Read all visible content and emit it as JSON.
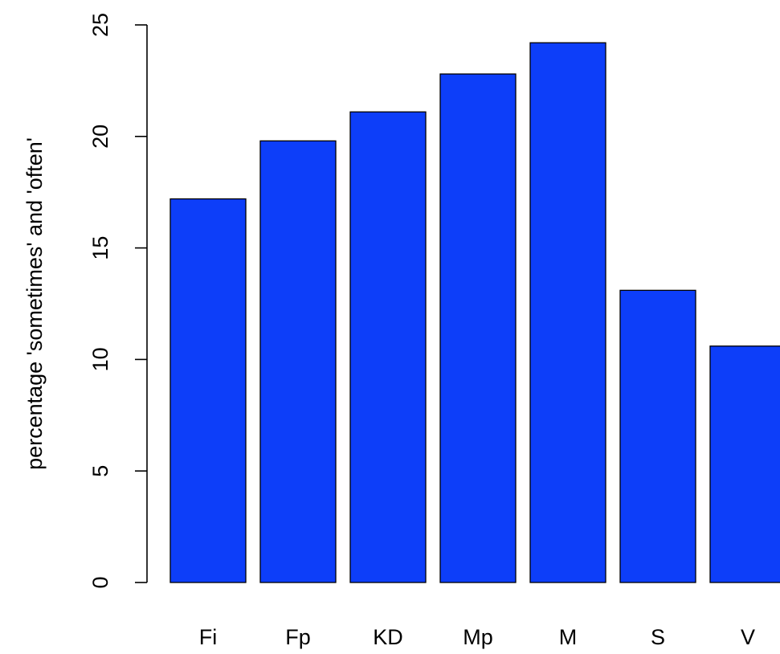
{
  "chart_data": {
    "type": "bar",
    "categories": [
      "Fi",
      "Fp",
      "KD",
      "Mp",
      "M",
      "S",
      "V"
    ],
    "values": [
      17.2,
      19.8,
      21.1,
      22.8,
      24.2,
      13.1,
      10.6
    ],
    "title": "",
    "xlabel": "",
    "ylabel": "percentage 'sometimes' and 'often'",
    "ylim": [
      0,
      25
    ],
    "yticks": [
      0,
      5,
      10,
      15,
      20,
      25
    ],
    "ytick_labels": [
      "0",
      "5",
      "10",
      "15",
      "20",
      "25"
    ],
    "grid": false,
    "legend": "none",
    "bar_color": "#0d3ef9",
    "border_color": "#000000"
  }
}
